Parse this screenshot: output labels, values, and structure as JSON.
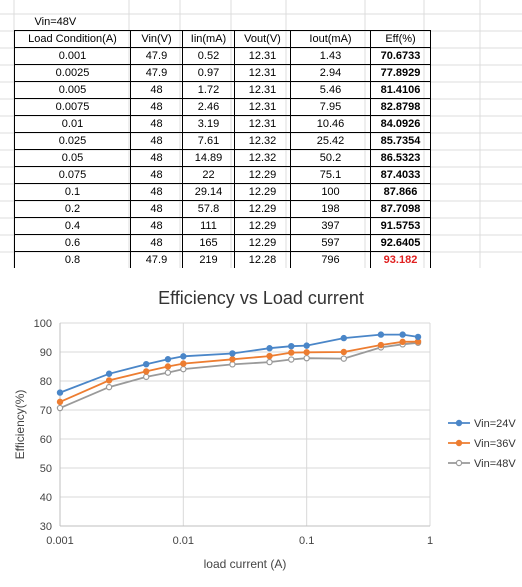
{
  "table": {
    "title": "Vin=48V",
    "headers": [
      "Load Condition(A)",
      "Vin(V)",
      "Iin(mA)",
      "Vout(V)",
      "Iout(mA)",
      "Eff(%)"
    ],
    "rows": [
      [
        "0.001",
        "47.9",
        "0.52",
        "12.31",
        "1.43",
        "70.6733"
      ],
      [
        "0.0025",
        "47.9",
        "0.97",
        "12.31",
        "2.94",
        "77.8929"
      ],
      [
        "0.005",
        "48",
        "1.72",
        "12.31",
        "5.46",
        "81.4106"
      ],
      [
        "0.0075",
        "48",
        "2.46",
        "12.31",
        "7.95",
        "82.8798"
      ],
      [
        "0.01",
        "48",
        "3.19",
        "12.31",
        "10.46",
        "84.0926"
      ],
      [
        "0.025",
        "48",
        "7.61",
        "12.32",
        "25.42",
        "85.7354"
      ],
      [
        "0.05",
        "48",
        "14.89",
        "12.32",
        "50.2",
        "86.5323"
      ],
      [
        "0.075",
        "48",
        "22",
        "12.29",
        "75.1",
        "87.4033"
      ],
      [
        "0.1",
        "48",
        "29.14",
        "12.29",
        "100",
        "87.866"
      ],
      [
        "0.2",
        "48",
        "57.8",
        "12.29",
        "198",
        "87.7098"
      ],
      [
        "0.4",
        "48",
        "111",
        "12.29",
        "397",
        "91.5753"
      ],
      [
        "0.6",
        "48",
        "165",
        "12.29",
        "597",
        "92.6405"
      ],
      [
        "0.8",
        "47.9",
        "219",
        "12.28",
        "796",
        "93.182"
      ]
    ],
    "highlight_color": "#e02020"
  },
  "chart_data": {
    "type": "line",
    "title": "Efficiency vs Load current",
    "xlabel": "load current (A)",
    "ylabel": "Efficiency(%)",
    "x_scale": "log",
    "xlim": [
      0.001,
      1
    ],
    "ylim": [
      30,
      100
    ],
    "x_ticks": [
      "0.001",
      "0.01",
      "0.1",
      "1"
    ],
    "y_ticks": [
      "30",
      "40",
      "50",
      "60",
      "70",
      "80",
      "90",
      "100"
    ],
    "grid": true,
    "legend_position": "right",
    "x": [
      0.001,
      0.0025,
      0.005,
      0.0075,
      0.01,
      0.025,
      0.05,
      0.075,
      0.1,
      0.2,
      0.4,
      0.6,
      0.8
    ],
    "series": [
      {
        "name": "Vin=24V",
        "color": "#4a86c8",
        "marker": "filled",
        "values": [
          76.0,
          82.5,
          85.8,
          87.5,
          88.5,
          89.5,
          91.3,
          92.0,
          92.2,
          94.8,
          96.0,
          96.0,
          95.2
        ]
      },
      {
        "name": "Vin=36V",
        "color": "#ed7d31",
        "marker": "filled",
        "values": [
          72.8,
          80.2,
          83.3,
          85.0,
          86.0,
          87.5,
          88.6,
          89.8,
          89.9,
          90.0,
          92.4,
          93.5,
          93.6
        ]
      },
      {
        "name": "Vin=48V",
        "color": "#9a9a9a",
        "marker": "hollow",
        "values": [
          70.67,
          77.89,
          81.41,
          82.88,
          84.09,
          85.74,
          86.53,
          87.4,
          87.87,
          87.71,
          91.58,
          92.64,
          93.18
        ]
      }
    ]
  }
}
